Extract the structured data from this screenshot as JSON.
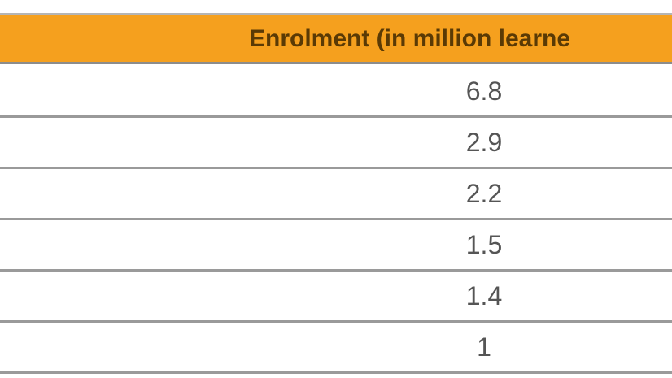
{
  "table": {
    "header": "Enrolment (in million learne",
    "rows": [
      6.8,
      2.9,
      2.2,
      1.5,
      1.4,
      1
    ]
  }
}
